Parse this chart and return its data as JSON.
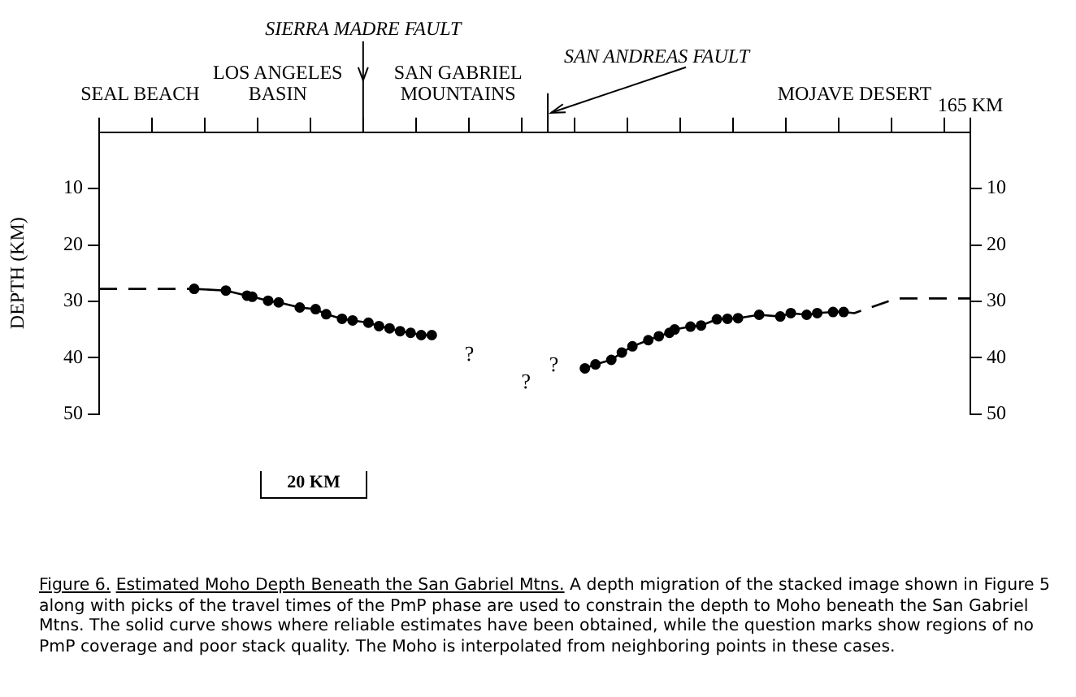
{
  "chart_data": {
    "type": "line",
    "title": "Estimated Moho Depth Beneath the San Gabriel Mtns.",
    "ylabel": "DEPTH (KM)",
    "categories": [
      null,
      null,
      null,
      null,
      null,
      null,
      null,
      null,
      null,
      null,
      null,
      null,
      null,
      null,
      null,
      null,
      null,
      null,
      null,
      null,
      null,
      null,
      null,
      null,
      null,
      null,
      null,
      null,
      null,
      null,
      null,
      null,
      null,
      null,
      null,
      null,
      null,
      null,
      null,
      null,
      null,
      null,
      null,
      null,
      null,
      null,
      null,
      null,
      null,
      null,
      null,
      null,
      null,
      null,
      null,
      null,
      null,
      null,
      null,
      null,
      null,
      null,
      null,
      null,
      null,
      null,
      null,
      null,
      null,
      null,
      null,
      null,
      null,
      null,
      null,
      null,
      null,
      null,
      null,
      null,
      null,
      null,
      null,
      null,
      null,
      null,
      null,
      null,
      null,
      null,
      null,
      null,
      null,
      null,
      null,
      null,
      null,
      null,
      null,
      null,
      null,
      null,
      null,
      null,
      null,
      null,
      null,
      null,
      null,
      null,
      null,
      null,
      null,
      null,
      null,
      null,
      null,
      null,
      null,
      null,
      null,
      null,
      null,
      null,
      null,
      null,
      null,
      null,
      null,
      null,
      null,
      null,
      null,
      null,
      null,
      null,
      null,
      null,
      null,
      null,
      null,
      null,
      null,
      null,
      null,
      null,
      null,
      null,
      null,
      null,
      null,
      null,
      null,
      null,
      null,
      null,
      null,
      null,
      null,
      null,
      null,
      null,
      null,
      null,
      null,
      "165 KM"
    ],
    "ylim": [
      50,
      0
    ],
    "yticks": [
      10,
      20,
      30,
      40,
      50
    ],
    "y2lim": [
      50,
      0
    ],
    "y2ticks": [
      10,
      20,
      30,
      40,
      50
    ],
    "grid": false,
    "legend": false,
    "series": [
      {
        "color": "#000000",
        "line_style": "dashed",
        "values": [
          27.8,
          null,
          null,
          null,
          null,
          null,
          null,
          null,
          null,
          null,
          null,
          null,
          null,
          null,
          null,
          null,
          null,
          null,
          27.8,
          null,
          null,
          null,
          null,
          null,
          null,
          null,
          null,
          null,
          null,
          null,
          null,
          null,
          null,
          null,
          null,
          null,
          null,
          null,
          null,
          null,
          null,
          null,
          null,
          null,
          null,
          null,
          null,
          null,
          null,
          null,
          null,
          null,
          null,
          null,
          null,
          null,
          null,
          null,
          null,
          null,
          null,
          null,
          null,
          null,
          null,
          null,
          null,
          null,
          null,
          null,
          null,
          null,
          null,
          null,
          null,
          null,
          null,
          null,
          null,
          null,
          null,
          null,
          null,
          null,
          null,
          null,
          null,
          null,
          null,
          null,
          null,
          null,
          null,
          null,
          null,
          null,
          null,
          null,
          null,
          null,
          null,
          null,
          null,
          null,
          null,
          null,
          null,
          null,
          null,
          null,
          null,
          null,
          null,
          null,
          null,
          null,
          null,
          null,
          null,
          null,
          null,
          null,
          null,
          null,
          null,
          null,
          null,
          null,
          null,
          null,
          null,
          null,
          null,
          null,
          null,
          null,
          null,
          null,
          null,
          null,
          null,
          null,
          null,
          null,
          null,
          null,
          null,
          null,
          null,
          null,
          null,
          null,
          null,
          null,
          null,
          null,
          null,
          null,
          null,
          null,
          null,
          null,
          null,
          null,
          null,
          null
        ]
      },
      {
        "color": "#000000",
        "line_style": "solid",
        "marker": "circle",
        "values": [
          null,
          null,
          null,
          null,
          null,
          null,
          null,
          null,
          null,
          null,
          null,
          null,
          null,
          null,
          null,
          null,
          null,
          null,
          27.8,
          null,
          null,
          null,
          null,
          null,
          28.1,
          null,
          null,
          null,
          29.0,
          29.2,
          null,
          null,
          29.9,
          null,
          30.2,
          null,
          null,
          null,
          31.1,
          null,
          null,
          31.4,
          null,
          32.3,
          null,
          null,
          33.1,
          null,
          33.4,
          null,
          null,
          33.8,
          null,
          34.4,
          null,
          34.8,
          null,
          35.3,
          null,
          35.6,
          null,
          36.0,
          null,
          36.0,
          null,
          null,
          null,
          null,
          null,
          null,
          null,
          null,
          null,
          null,
          null,
          null,
          null,
          null,
          null,
          null,
          null,
          null,
          null,
          null,
          null,
          null,
          null,
          null,
          null,
          null,
          null,
          null,
          null,
          null,
          null,
          null,
          null,
          null,
          null,
          null,
          null,
          null,
          null,
          null,
          null,
          null,
          null,
          null,
          null,
          null,
          null,
          null,
          null,
          null,
          null,
          null,
          null,
          null,
          null,
          null,
          null,
          null,
          null,
          null,
          null,
          null,
          null,
          null,
          null,
          null,
          null,
          null,
          null,
          null,
          null,
          null,
          null,
          null,
          null,
          null,
          null,
          null,
          null,
          null,
          null,
          null,
          null,
          null,
          null,
          null,
          null,
          null,
          null,
          null,
          null,
          null,
          null,
          null,
          null,
          null,
          null,
          null,
          null,
          null,
          null,
          null
        ]
      },
      {
        "color": "#000000",
        "line_style": "solid",
        "marker": "circle",
        "values": [
          null,
          null,
          null,
          null,
          null,
          null,
          null,
          null,
          null,
          null,
          null,
          null,
          null,
          null,
          null,
          null,
          null,
          null,
          null,
          null,
          null,
          null,
          null,
          null,
          null,
          null,
          null,
          null,
          null,
          null,
          null,
          null,
          null,
          null,
          null,
          null,
          null,
          null,
          null,
          null,
          null,
          null,
          null,
          null,
          null,
          null,
          null,
          null,
          null,
          null,
          null,
          null,
          null,
          null,
          null,
          null,
          null,
          null,
          null,
          null,
          null,
          null,
          null,
          null,
          null,
          null,
          null,
          null,
          null,
          null,
          null,
          null,
          null,
          null,
          null,
          null,
          null,
          null,
          null,
          null,
          null,
          null,
          null,
          null,
          null,
          null,
          null,
          null,
          null,
          null,
          null,
          null,
          41.9,
          null,
          41.2,
          null,
          null,
          40.4,
          null,
          39.1,
          null,
          38.0,
          null,
          null,
          36.9,
          null,
          36.2,
          null,
          35.6,
          35.0,
          null,
          null,
          34.5,
          null,
          34.3,
          null,
          null,
          33.2,
          null,
          33.1,
          null,
          33.0,
          null,
          null,
          null,
          32.4,
          null,
          null,
          null,
          32.7,
          null,
          32.1,
          null,
          null,
          32.4,
          null,
          32.1,
          null,
          null,
          31.9,
          null,
          31.9,
          null,
          null,
          null,
          null,
          null,
          null,
          null,
          null,
          null,
          null,
          null,
          null,
          null,
          null,
          null,
          null,
          null,
          null,
          null,
          null,
          null,
          null,
          null,
          null
        ]
      },
      {
        "color": "#000000",
        "line_style": "dashed",
        "marker": "none",
        "values": [
          null,
          null,
          null,
          null,
          null,
          null,
          null,
          null,
          null,
          null,
          null,
          null,
          null,
          null,
          null,
          null,
          null,
          null,
          null,
          null,
          null,
          null,
          null,
          null,
          null,
          null,
          null,
          null,
          null,
          null,
          null,
          null,
          null,
          null,
          null,
          null,
          null,
          null,
          null,
          null,
          null,
          null,
          null,
          null,
          null,
          null,
          null,
          null,
          null,
          null,
          null,
          null,
          null,
          null,
          null,
          null,
          null,
          null,
          null,
          null,
          null,
          null,
          null,
          null,
          null,
          null,
          null,
          null,
          null,
          null,
          null,
          null,
          null,
          null,
          null,
          null,
          null,
          null,
          null,
          null,
          null,
          null,
          null,
          null,
          null,
          null,
          null,
          null,
          null,
          null,
          null,
          null,
          null,
          null,
          null,
          null,
          null,
          null,
          null,
          null,
          null,
          null,
          null,
          null,
          null,
          null,
          null,
          null,
          null,
          null,
          null,
          null,
          null,
          null,
          null,
          null,
          null,
          null,
          null,
          null,
          null,
          null,
          null,
          null,
          null,
          null,
          null,
          null,
          null,
          null,
          null,
          null,
          null,
          null,
          null,
          null,
          null,
          null,
          null,
          null,
          null,
          31.9,
          null,
          32.1,
          null,
          null,
          null,
          null,
          null,
          null,
          null,
          29.5,
          null,
          null,
          null,
          null,
          null,
          null,
          null,
          null,
          null,
          null,
          null,
          null,
          null,
          29.5
        ]
      }
    ],
    "annotations": [
      "SEAL BEACH",
      "LOS ANGELES BASIN",
      "SAN GABRIEL MOUNTAINS",
      "MOJAVE DESERT",
      "SIERRA MADRE FAULT",
      "SAN ANDREAS FAULT",
      "?",
      "?",
      "?",
      "20 KM",
      "Figure 6.",
      "A depth migration of the stacked image shown in Figure 5 along with picks of the travel times of the PmP phase are used to constrain the depth to Moho beneath the San Gabriel Mtns.  The solid curve  shows where reliable estimates have been obtained, while the question marks show regions of no PmP coverage and poor stack quality.  The Moho is interpolated from neighboring points in these cases."
    ]
  }
}
